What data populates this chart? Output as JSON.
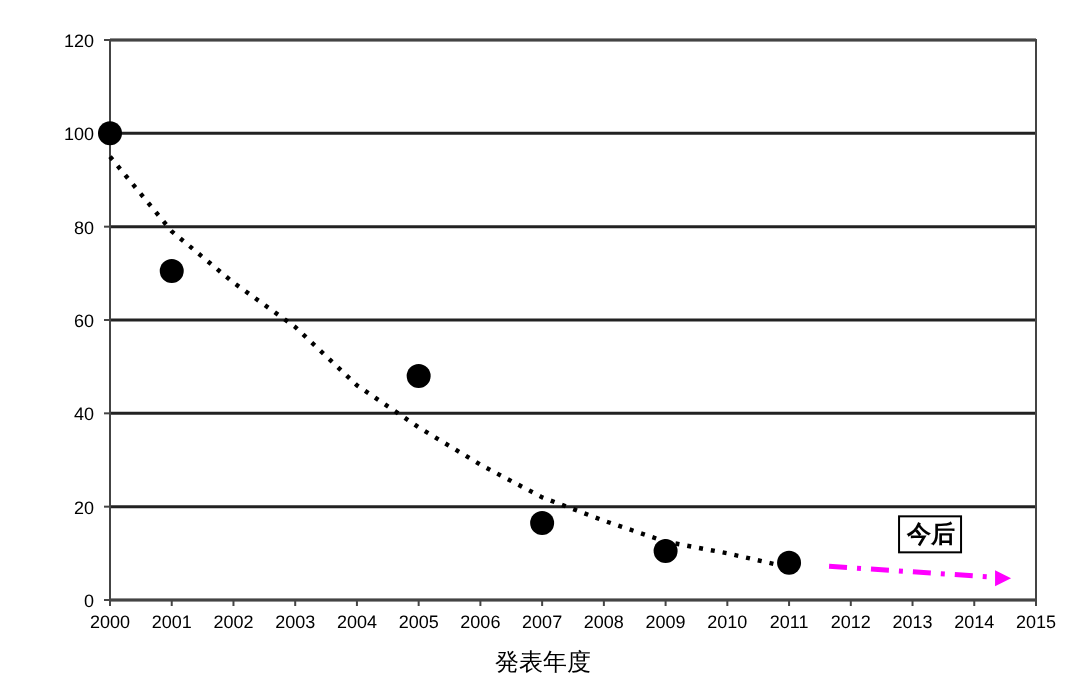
{
  "chart_data": {
    "type": "scatter",
    "xlabel": "発表年度",
    "xlim": [
      2000,
      2015
    ],
    "xticks": [
      2000,
      2001,
      2002,
      2003,
      2004,
      2005,
      2006,
      2007,
      2008,
      2009,
      2010,
      2011,
      2012,
      2013,
      2014,
      2015
    ],
    "ylim": [
      0,
      120
    ],
    "yticks": [
      0,
      20,
      40,
      60,
      80,
      100,
      120
    ],
    "grid": "y",
    "series": [
      {
        "type": "line",
        "color": "#000000",
        "line_style": "dotted",
        "marker": "none",
        "x": [
          2000,
          2001,
          2002,
          2003,
          2004,
          2005,
          2006,
          2007,
          2008,
          2009,
          2010,
          2011
        ],
        "values": [
          95,
          79,
          68,
          58.5,
          46,
          37,
          29,
          22,
          17,
          12.5,
          10,
          7
        ]
      },
      {
        "color": "#000000",
        "marker": "circle",
        "x": [
          2000,
          2001,
          2005,
          2007,
          2009,
          2011
        ],
        "values": [
          100,
          70.5,
          48,
          16.5,
          10.5,
          8
        ]
      }
    ],
    "annotations": [
      {
        "text": "今后",
        "x": 2013.3,
        "y": 14.5
      }
    ]
  }
}
